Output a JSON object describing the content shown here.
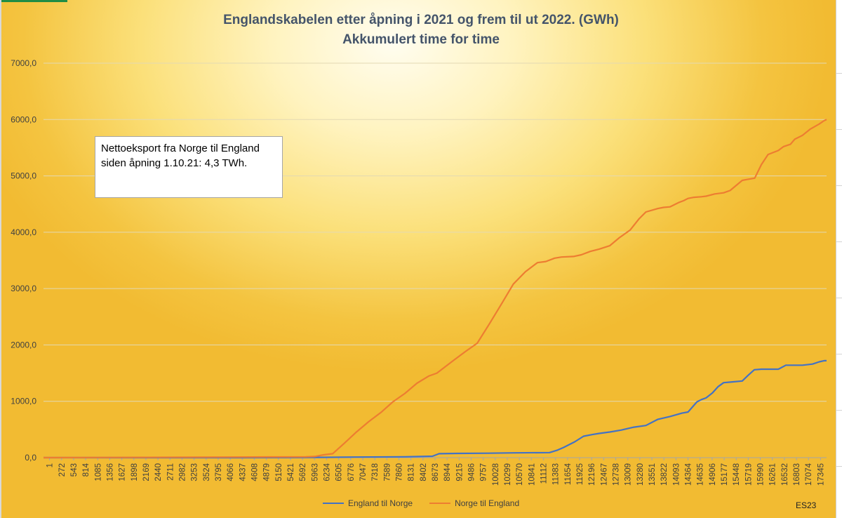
{
  "chart_data": {
    "type": "line",
    "title": "Englandskabelen etter åpning i 2021 og frem til ut 2022. (GWh)",
    "subtitle": "Akkumulert time for time",
    "xlabel": "",
    "ylabel": "",
    "ylim": [
      0,
      7000
    ],
    "xlim": [
      1,
      17616
    ],
    "yticks": [
      0,
      1000,
      2000,
      3000,
      4000,
      5000,
      6000,
      7000
    ],
    "ytick_labels": [
      "0,0",
      "1000,0",
      "2000,0",
      "3000,0",
      "4000,0",
      "5000,0",
      "6000,0",
      "7000,0"
    ],
    "xtick_labels": [
      "1",
      "272",
      "543",
      "814",
      "1085",
      "1356",
      "1627",
      "1898",
      "2169",
      "2440",
      "2711",
      "2982",
      "3253",
      "3524",
      "3795",
      "4066",
      "4337",
      "4608",
      "4879",
      "5150",
      "5421",
      "5692",
      "5963",
      "6234",
      "6505",
      "6776",
      "7047",
      "7318",
      "7589",
      "7860",
      "8131",
      "8402",
      "8673",
      "8944",
      "9215",
      "9486",
      "9757",
      "10028",
      "10299",
      "10570",
      "10841",
      "11112",
      "11383",
      "11654",
      "11925",
      "12196",
      "12467",
      "12738",
      "13009",
      "13280",
      "13551",
      "13822",
      "14093",
      "14364",
      "14635",
      "14906",
      "15177",
      "15448",
      "15719",
      "15990",
      "16261",
      "16532",
      "16803",
      "17074",
      "17345"
    ],
    "grid": true,
    "series": [
      {
        "name": "England til Norge",
        "color": "#4472c4",
        "x": [
          1,
          4500,
          6234,
          7000,
          8131,
          8750,
          8900,
          9300,
          10000,
          10570,
          11383,
          11550,
          11700,
          11950,
          12150,
          12350,
          12500,
          12738,
          13000,
          13280,
          13551,
          13822,
          14093,
          14364,
          14500,
          14700,
          14800,
          14906,
          15050,
          15177,
          15300,
          15450,
          15719,
          15850,
          15990,
          16150,
          16300,
          16532,
          16700,
          16803,
          17074,
          17300,
          17450,
          17560,
          17616
        ],
        "y": [
          0,
          0,
          5,
          10,
          15,
          25,
          70,
          75,
          78,
          85,
          90,
          130,
          180,
          280,
          380,
          410,
          430,
          455,
          490,
          540,
          570,
          680,
          730,
          790,
          810,
          990,
          1030,
          1060,
          1150,
          1260,
          1330,
          1340,
          1360,
          1460,
          1560,
          1570,
          1570,
          1570,
          1640,
          1640,
          1640,
          1660,
          1700,
          1720,
          1720
        ]
      },
      {
        "name": "Norge til England",
        "color": "#ed7d31",
        "x": [
          1,
          4300,
          5900,
          6100,
          6300,
          6505,
          6776,
          7047,
          7318,
          7589,
          7860,
          8131,
          8402,
          8673,
          8850,
          9215,
          9486,
          9757,
          10028,
          10299,
          10570,
          10841,
          11112,
          11300,
          11500,
          11654,
          11925,
          12100,
          12300,
          12500,
          12738,
          12950,
          13200,
          13400,
          13551,
          13822,
          13950,
          14093,
          14300,
          14400,
          14500,
          14635,
          14800,
          14906,
          15100,
          15300,
          15448,
          15719,
          15850,
          16000,
          16150,
          16300,
          16532,
          16650,
          16803,
          16900,
          17074,
          17250,
          17450,
          17560,
          17616
        ],
        "y": [
          0,
          10,
          15,
          20,
          50,
          70,
          260,
          460,
          640,
          800,
          990,
          1140,
          1320,
          1450,
          1500,
          1720,
          1880,
          2030,
          2370,
          2720,
          3080,
          3300,
          3460,
          3480,
          3540,
          3560,
          3570,
          3600,
          3660,
          3700,
          3760,
          3900,
          4040,
          4240,
          4360,
          4420,
          4440,
          4450,
          4530,
          4560,
          4600,
          4620,
          4630,
          4640,
          4680,
          4700,
          4740,
          4920,
          4940,
          4960,
          5200,
          5380,
          5450,
          5520,
          5560,
          5650,
          5720,
          5830,
          5920,
          5980,
          6000
        ]
      }
    ],
    "annotation": {
      "line1": "Nettoeksport fra Norge til England",
      "line2": "siden åpning 1.10.21: 4,3 TWh."
    },
    "legend_position": "bottom",
    "credit": "ES23"
  }
}
